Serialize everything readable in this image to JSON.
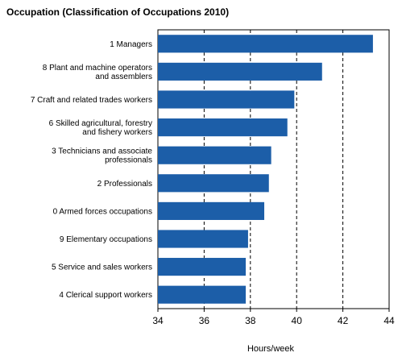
{
  "chart_data": {
    "type": "bar",
    "orientation": "horizontal",
    "title": "Occupation (Classification of Occupations 2010)",
    "xlabel": "Hours/week",
    "ylabel": "",
    "xlim": [
      34,
      44
    ],
    "xticks": [
      "34",
      "36",
      "38",
      "40",
      "42",
      "44"
    ],
    "grid": "vertical dashed",
    "categories": [
      [
        "1 Managers"
      ],
      [
        "8 Plant and machine operators",
        "and assemblers"
      ],
      [
        "7 Craft and related trades workers"
      ],
      [
        "6 Skilled agricultural, forestry",
        "and fishery workers"
      ],
      [
        "3 Technicians and associate",
        "professionals"
      ],
      [
        "2 Professionals"
      ],
      [
        "0 Armed forces occupations"
      ],
      [
        "9 Elementary occupations"
      ],
      [
        "5 Service and sales workers"
      ],
      [
        "4 Clerical support workers"
      ]
    ],
    "values": [
      43.3,
      41.1,
      39.9,
      39.6,
      38.9,
      38.8,
      38.6,
      37.9,
      37.8,
      37.8
    ],
    "colors": {
      "bar": "#1c5ea8",
      "grid": "#000000",
      "frame": "#000000"
    }
  }
}
